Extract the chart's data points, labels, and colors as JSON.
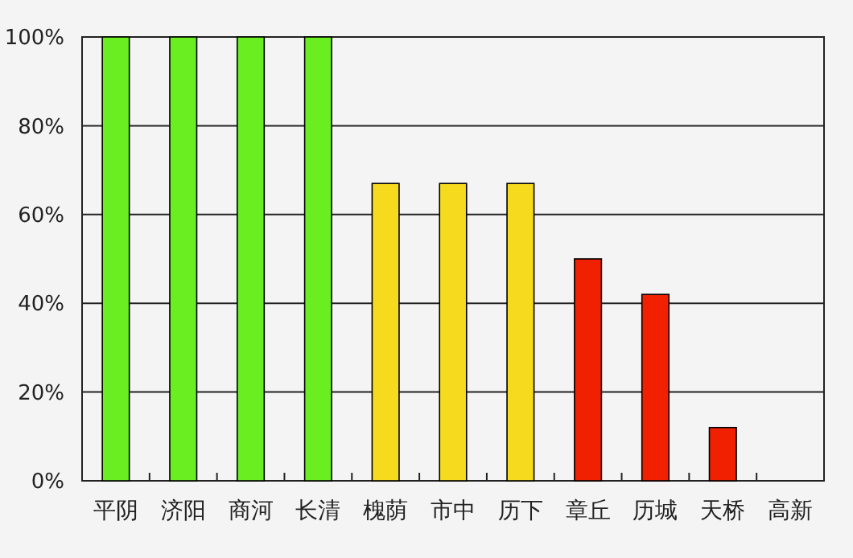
{
  "chart_data": {
    "type": "bar",
    "categories": [
      "平阴",
      "济阳",
      "商河",
      "长清",
      "槐荫",
      "市中",
      "历下",
      "章丘",
      "历城",
      "天桥",
      "高新"
    ],
    "values": [
      100,
      100,
      100,
      100,
      67,
      67,
      67,
      50,
      42,
      12,
      0
    ],
    "colors": [
      "#6aee22",
      "#6aee22",
      "#6aee22",
      "#6aee22",
      "#f6da1e",
      "#f6da1e",
      "#f6da1e",
      "#f02000",
      "#f02000",
      "#f02000",
      "#f02000"
    ],
    "ylim": [
      0,
      100
    ],
    "yticks": [
      {
        "value": 0,
        "label": "0%"
      },
      {
        "value": 20,
        "label": "20%"
      },
      {
        "value": 40,
        "label": "40%"
      },
      {
        "value": 60,
        "label": "60%"
      },
      {
        "value": 80,
        "label": "80%"
      },
      {
        "value": 100,
        "label": "100%"
      }
    ],
    "grid": "y"
  }
}
